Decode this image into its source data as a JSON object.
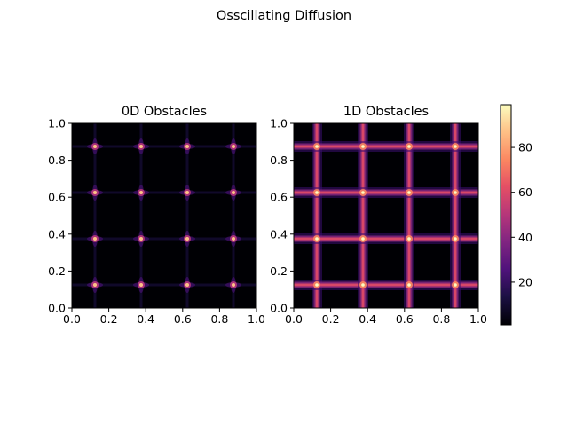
{
  "figure": {
    "suptitle": "Osscillating Diffusion"
  },
  "chart_data": [
    {
      "type": "heatmap",
      "title": "0D Obstacles",
      "xlim": [
        0,
        1
      ],
      "ylim": [
        0,
        1
      ],
      "xticks": [
        "0.0",
        "0.2",
        "0.4",
        "0.6",
        "0.8",
        "1.0"
      ],
      "yticks": [
        "0.0",
        "0.2",
        "0.4",
        "0.6",
        "0.8",
        "1.0"
      ],
      "obstacle_centers": [
        0.125,
        0.375,
        0.625,
        0.875
      ],
      "pattern": "points",
      "colormap": "magma"
    },
    {
      "type": "heatmap",
      "title": "1D Obstacles",
      "xlim": [
        0,
        1
      ],
      "ylim": [
        0,
        1
      ],
      "xticks": [
        "0.0",
        "0.2",
        "0.4",
        "0.6",
        "0.8",
        "1.0"
      ],
      "yticks": [
        "0.0",
        "0.2",
        "0.4",
        "0.6",
        "0.8",
        "1.0"
      ],
      "obstacle_centers": [
        0.125,
        0.375,
        0.625,
        0.875
      ],
      "pattern": "lines",
      "colormap": "magma"
    }
  ],
  "colorbar": {
    "range": [
      1,
      99
    ],
    "ticks": [
      20,
      40,
      60,
      80
    ],
    "tick_labels": [
      "20",
      "40",
      "60",
      "80"
    ],
    "colormap": "magma"
  }
}
